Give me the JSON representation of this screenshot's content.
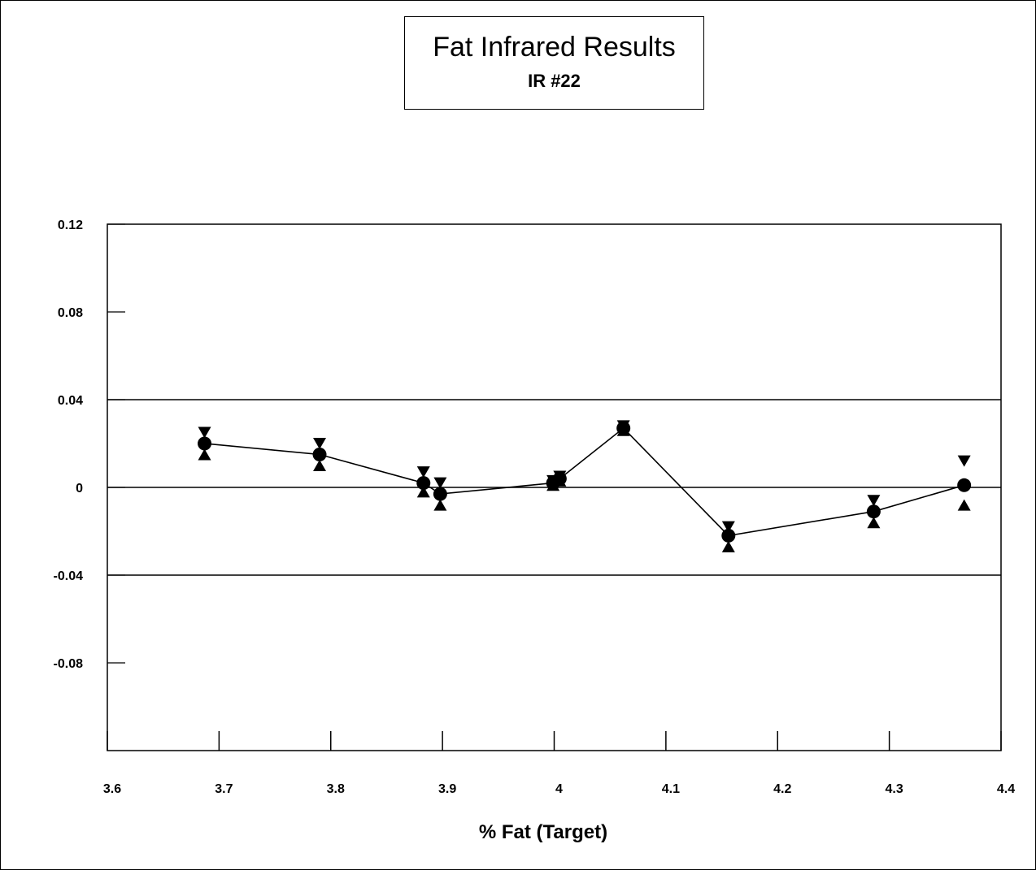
{
  "chart_data": {
    "type": "scatter",
    "title": "Fat Infrared Results",
    "subtitle": "IR #22",
    "xlabel": "% Fat (Target)",
    "ylabel": "",
    "xlim": [
      3.6,
      4.4
    ],
    "ylim": [
      -0.12,
      0.12
    ],
    "x_ticks": [
      "3.6",
      "3.7",
      "3.8",
      "3.9",
      "4",
      "4.1",
      "4.2",
      "4.3",
      "4.4"
    ],
    "y_ticks": [
      "0.12",
      "0.08",
      "0.04",
      "0",
      "-0.04",
      "-0.08"
    ],
    "reference_lines": [
      0.04,
      0,
      -0.04
    ],
    "series": [
      {
        "marker": "circle",
        "connected": true,
        "points": [
          {
            "x": 3.687,
            "y": 0.02
          },
          {
            "x": 3.79,
            "y": 0.015
          },
          {
            "x": 3.883,
            "y": 0.002
          },
          {
            "x": 3.898,
            "y": -0.003
          },
          {
            "x": 3.999,
            "y": 0.002
          },
          {
            "x": 4.005,
            "y": 0.004
          },
          {
            "x": 4.062,
            "y": 0.027
          },
          {
            "x": 4.156,
            "y": -0.022
          },
          {
            "x": 4.286,
            "y": -0.011
          },
          {
            "x": 4.367,
            "y": 0.001
          }
        ]
      },
      {
        "marker": "triangle-down",
        "connected": false,
        "points": [
          {
            "x": 3.687,
            "y": 0.025
          },
          {
            "x": 3.79,
            "y": 0.02
          },
          {
            "x": 3.883,
            "y": 0.007
          },
          {
            "x": 3.898,
            "y": 0.002
          },
          {
            "x": 3.999,
            "y": 0.003
          },
          {
            "x": 4.005,
            "y": 0.005
          },
          {
            "x": 4.062,
            "y": 0.028
          },
          {
            "x": 4.156,
            "y": -0.018
          },
          {
            "x": 4.286,
            "y": -0.006
          },
          {
            "x": 4.367,
            "y": 0.012
          }
        ]
      },
      {
        "marker": "triangle-up",
        "connected": false,
        "points": [
          {
            "x": 3.687,
            "y": 0.015
          },
          {
            "x": 3.79,
            "y": 0.01
          },
          {
            "x": 3.883,
            "y": -0.002
          },
          {
            "x": 3.898,
            "y": -0.008
          },
          {
            "x": 3.999,
            "y": 0.001
          },
          {
            "x": 4.005,
            "y": 0.003
          },
          {
            "x": 4.062,
            "y": 0.026
          },
          {
            "x": 4.156,
            "y": -0.027
          },
          {
            "x": 4.286,
            "y": -0.016
          },
          {
            "x": 4.367,
            "y": -0.008
          }
        ]
      }
    ]
  }
}
